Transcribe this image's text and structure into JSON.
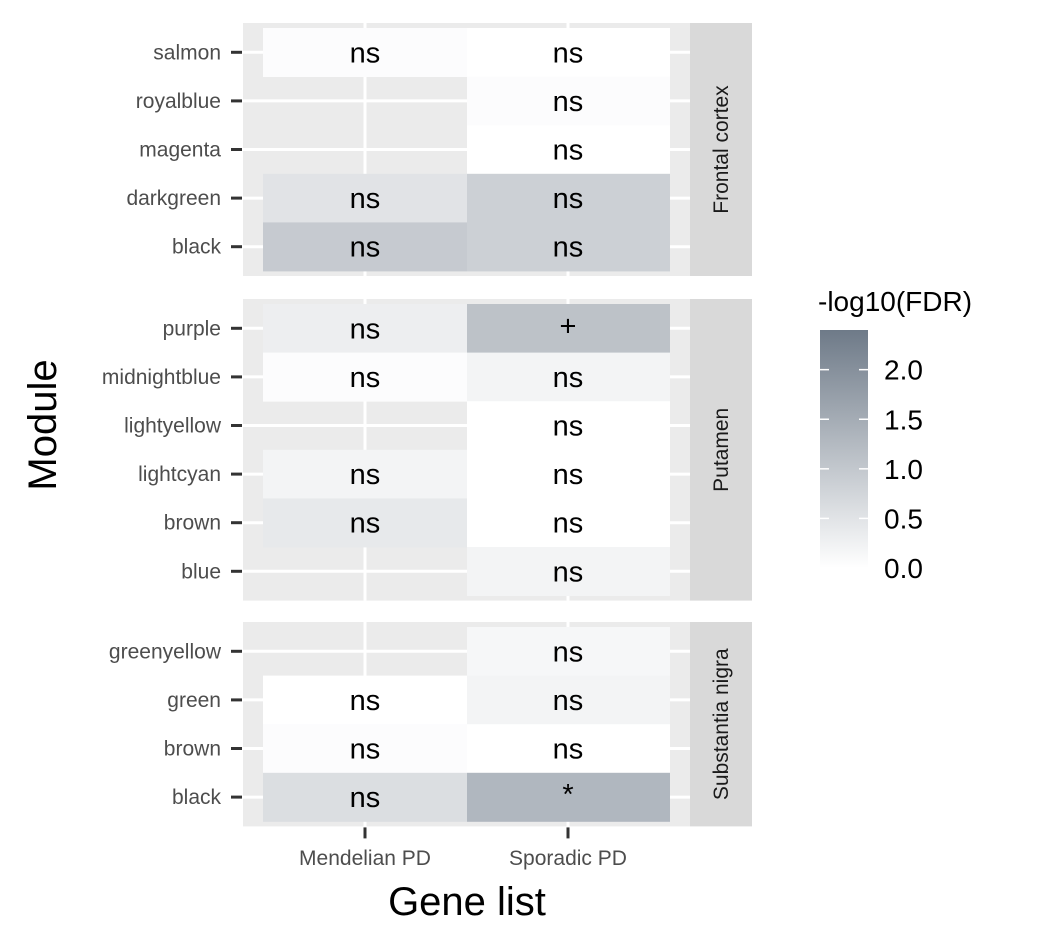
{
  "chart_data": {
    "type": "heatmap",
    "xlabel": "Gene list",
    "ylabel": "Module",
    "x_categories": [
      "Mendelian PD",
      "Sporadic PD"
    ],
    "panels": [
      {
        "name": "Frontal cortex",
        "rows": [
          {
            "module": "salmon",
            "values": [
              0.05,
              0.0
            ],
            "labels": [
              "ns",
              "ns"
            ]
          },
          {
            "module": "royalblue",
            "values": [
              null,
              0.05
            ],
            "labels": [
              "",
              "ns"
            ]
          },
          {
            "module": "magenta",
            "values": [
              null,
              0.0
            ],
            "labels": [
              "",
              "ns"
            ]
          },
          {
            "module": "darkgreen",
            "values": [
              0.5,
              0.85
            ],
            "labels": [
              "ns",
              "ns"
            ]
          },
          {
            "module": "black",
            "values": [
              0.95,
              0.85
            ],
            "labels": [
              "ns",
              "ns"
            ]
          }
        ]
      },
      {
        "name": "Putamen",
        "rows": [
          {
            "module": "purple",
            "values": [
              0.3,
              1.1
            ],
            "labels": [
              "ns",
              "+"
            ]
          },
          {
            "module": "midnightblue",
            "values": [
              0.05,
              0.2
            ],
            "labels": [
              "ns",
              "ns"
            ]
          },
          {
            "module": "lightyellow",
            "values": [
              null,
              0.0
            ],
            "labels": [
              "",
              "ns"
            ]
          },
          {
            "module": "lightcyan",
            "values": [
              0.2,
              0.0
            ],
            "labels": [
              "ns",
              "ns"
            ]
          },
          {
            "module": "brown",
            "values": [
              0.4,
              0.0
            ],
            "labels": [
              "ns",
              "ns"
            ]
          },
          {
            "module": "blue",
            "values": [
              null,
              0.2
            ],
            "labels": [
              "",
              "ns"
            ]
          }
        ]
      },
      {
        "name": "Substantia nigra",
        "rows": [
          {
            "module": "greenyellow",
            "values": [
              null,
              0.15
            ],
            "labels": [
              "",
              "ns"
            ]
          },
          {
            "module": "green",
            "values": [
              0.0,
              0.2
            ],
            "labels": [
              "ns",
              "ns"
            ]
          },
          {
            "module": "brown",
            "values": [
              0.05,
              0.0
            ],
            "labels": [
              "ns",
              "ns"
            ]
          },
          {
            "module": "black",
            "values": [
              0.6,
              1.3
            ],
            "labels": [
              "ns",
              "*"
            ]
          }
        ]
      }
    ],
    "legend": {
      "title": "-log10(FDR)",
      "ticks": [
        0.0,
        0.5,
        1.0,
        1.5,
        2.0
      ],
      "tick_labels": [
        "0.0",
        "0.5",
        "1.0",
        "1.5",
        "2.0"
      ],
      "range": [
        0,
        2.4
      ],
      "low_color": "#ffffff",
      "high_color": "#6e7a88",
      "position": "right"
    },
    "colors": {
      "panel_background": "#ebebeb",
      "grid": "#ffffff",
      "strip_background": "#d9d9d9"
    }
  }
}
